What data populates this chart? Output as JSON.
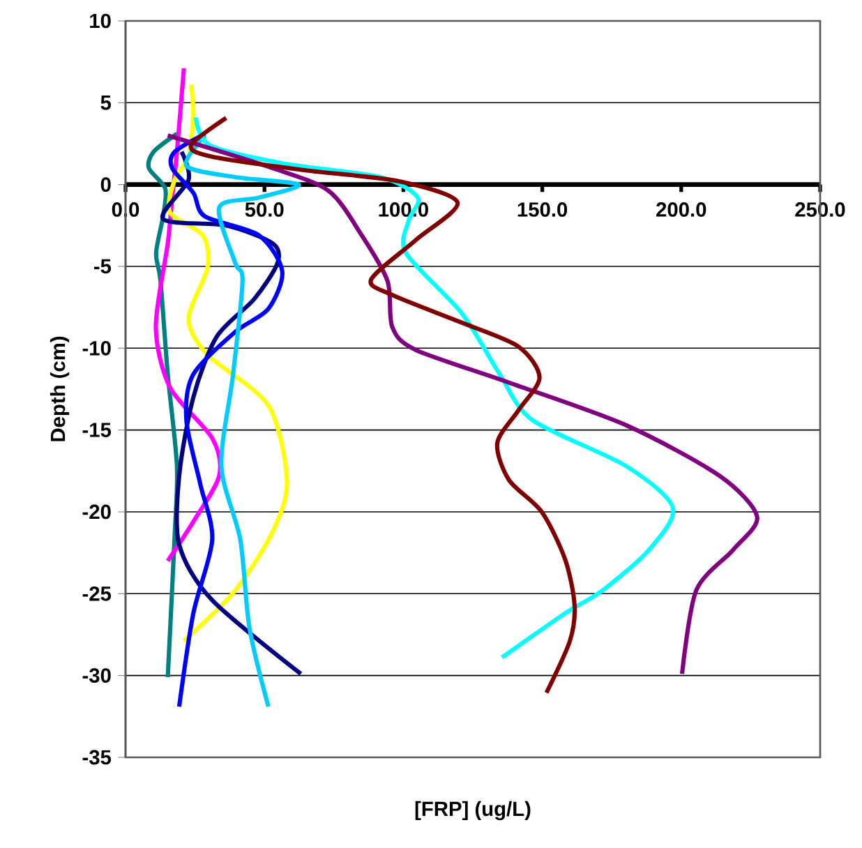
{
  "chart_data": {
    "type": "line",
    "xlabel": "[FRP] (ug/L)",
    "ylabel": "Depth (cm)",
    "xlim": [
      0,
      250
    ],
    "ylim": [
      -35,
      10
    ],
    "xticks": [
      {
        "value": 0,
        "label": "0.0"
      },
      {
        "value": 50,
        "label": "50.0"
      },
      {
        "value": 100,
        "label": "100.0"
      },
      {
        "value": 150,
        "label": "150.0"
      },
      {
        "value": 200,
        "label": "200.0"
      },
      {
        "value": 250,
        "label": "250.0"
      }
    ],
    "yticks": [
      -35,
      -30,
      -25,
      -20,
      -15,
      -10,
      -5,
      0,
      5,
      10
    ],
    "grid": "y",
    "marker": "none",
    "series": [
      {
        "color": "#008080",
        "x": [
          18.5,
          10.1,
          8.4,
          14.3,
          13.5,
          11,
          12.6,
          15.2,
          18.5,
          17.7,
          15.2
        ],
        "values": [
          3.1,
          2.0,
          1.0,
          -0.25,
          -1.95,
          -4.2,
          -5.9,
          -11.6,
          -17.2,
          -21.4,
          -30.1
        ]
      },
      {
        "color": "#ff00ff",
        "x": [
          21,
          18.5,
          16.8,
          15.2,
          10.9,
          16,
          31.2,
          33.7,
          24.4,
          15.2
        ],
        "values": [
          7.1,
          2.0,
          -0.8,
          -3.6,
          -8.7,
          -12.4,
          -15.5,
          -17.8,
          -20.6,
          -23
        ]
      },
      {
        "color": "#ffff00",
        "x": [
          23.6,
          24.4,
          22.7,
          17.7,
          16,
          27.8,
          29.5,
          22.7,
          29.5,
          51.4,
          58.1,
          53,
          39.5,
          21
        ],
        "values": [
          6.1,
          4.3,
          1.7,
          0.3,
          -1.7,
          -3.1,
          -5.1,
          -8.2,
          -10.4,
          -13.5,
          -18.1,
          -21.2,
          -24.8,
          -27.9
        ]
      },
      {
        "color": "#000080",
        "x": [
          20.2,
          22.7,
          13.5,
          36.2,
          53,
          54.7,
          46.3,
          32.8,
          24.4,
          19.3,
          19.3,
          31.2,
          63.1
        ],
        "values": [
          2.0,
          0.3,
          -2.1,
          -2.5,
          -3.6,
          -4.8,
          -7.0,
          -9.3,
          -13,
          -17.8,
          -22,
          -25.4,
          -29.9
        ]
      },
      {
        "color": "#0000ff",
        "x": [
          28.6,
          17.7,
          16.8,
          24.4,
          28.6,
          48,
          56.4,
          51.4,
          39.5,
          24.4,
          21.9,
          26.9,
          31.2,
          24.4,
          19.3
        ],
        "values": [
          3.1,
          2.0,
          1.0,
          -0.5,
          -1.95,
          -3.1,
          -5.3,
          -7.6,
          -9.0,
          -11.6,
          -14.4,
          -18.3,
          -21.7,
          -26.2,
          -31.9
        ]
      },
      {
        "color": "#00ccff",
        "x": [
          28.6,
          21.9,
          39.5,
          62.3,
          48,
          33.7,
          39.5,
          42.1,
          38.7,
          34.5,
          41.3,
          44.6,
          51.4
        ],
        "values": [
          3.0,
          1.15,
          0.45,
          0,
          -0.8,
          -1.4,
          -4.8,
          -5.9,
          -11.6,
          -17.2,
          -21.7,
          -27.1,
          -31.9
        ]
      },
      {
        "color": "#00ffff",
        "x": [
          25.3,
          30.3,
          56.4,
          91.8,
          105.2,
          101.9,
          101,
          121.2,
          134.7,
          146.5,
          180.1,
          197,
          188.5,
          171.7,
          158.2,
          135.5
        ],
        "values": [
          4.1,
          2.4,
          1.3,
          0.45,
          -0.8,
          -2.2,
          -4.2,
          -7.9,
          -11.6,
          -14.4,
          -17.2,
          -19.75,
          -22.3,
          -24.8,
          -26.2,
          -28.9
        ]
      },
      {
        "color": "#800080",
        "x": [
          15.2,
          53,
          73.2,
          85,
          94.3,
          96,
          104.4,
          138,
          180.1,
          213.8,
          227.3,
          218.8,
          205.4,
          200.3
        ],
        "values": [
          3.0,
          1.0,
          -0.4,
          -3.1,
          -5.9,
          -8.7,
          -10.1,
          -12.1,
          -14.7,
          -17.8,
          -20.3,
          -22.3,
          -24.8,
          -29.9
        ]
      },
      {
        "color": "#800000",
        "x": [
          36.2,
          23.6,
          31.2,
          64.8,
          98.5,
          119.5,
          104.4,
          88.4,
          96,
          121.2,
          141.4,
          149,
          141.4,
          133.8,
          138,
          149.8,
          158.2,
          161.6,
          159.9,
          151.5
        ],
        "values": [
          4.07,
          2.4,
          1.7,
          0.87,
          0.2,
          -1.1,
          -3.4,
          -5.8,
          -6.75,
          -8.45,
          -9.9,
          -11.8,
          -13.8,
          -15.8,
          -18.05,
          -20,
          -22.9,
          -25.7,
          -27.9,
          -31.05
        ]
      }
    ]
  }
}
